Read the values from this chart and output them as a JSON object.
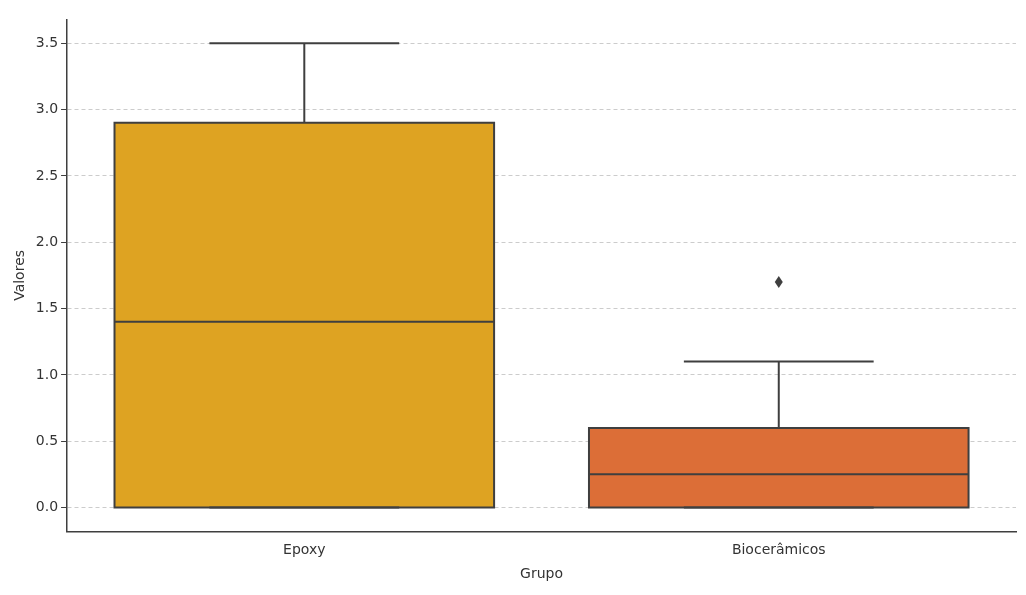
{
  "chart_data": {
    "type": "box",
    "xlabel": "Grupo",
    "ylabel": "Valores",
    "categories": [
      "Epoxy",
      "Biocerâmicos"
    ],
    "colors": [
      "#dea322",
      "#dc6e37"
    ],
    "boxes": [
      {
        "low": 0,
        "q1": 0,
        "median": 1.4,
        "q3": 2.9,
        "high": 3.5
      },
      {
        "low": 0,
        "q1": 0,
        "median": 0.25,
        "q3": 0.6,
        "high": 1.1,
        "outliers": [
          1.7
        ]
      }
    ],
    "ylim": [
      -0.18,
      3.68
    ],
    "yticks": [
      {
        "value": 0,
        "label": "0.0"
      },
      {
        "value": 0.5,
        "label": "0.5"
      },
      {
        "value": 1,
        "label": "1.0"
      },
      {
        "value": 1.5,
        "label": "1.5"
      },
      {
        "value": 2,
        "label": "2.0"
      },
      {
        "value": 2.5,
        "label": "2.5"
      },
      {
        "value": 3,
        "label": "3.0"
      },
      {
        "value": 3.5,
        "label": "3.5"
      }
    ],
    "grid": "y"
  }
}
